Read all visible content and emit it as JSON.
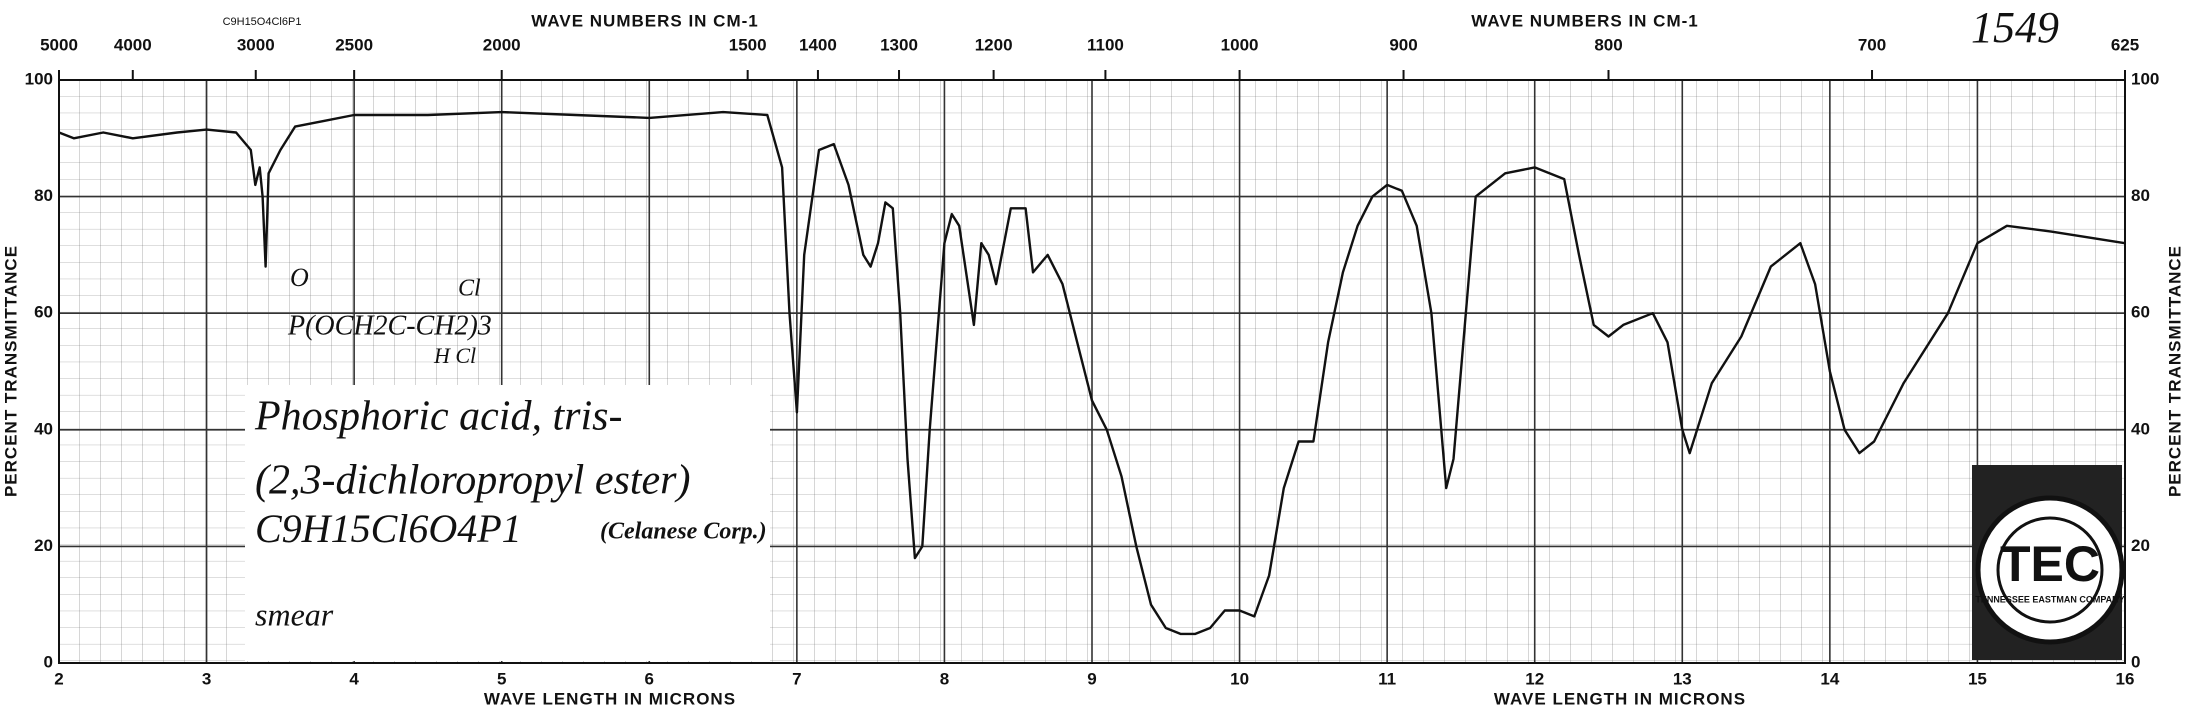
{
  "chart_data": {
    "type": "line",
    "catalog_number": "1549",
    "xlabel": "WAVE LENGTH IN MICRONS",
    "x2label": "WAVE NUMBERS IN CM-1",
    "ylabel": "PERCENT TRANSMITTANCE",
    "formula_top": "C9H15O4Cl6P1",
    "structure": [
      "O",
      "P(OCH2C-CH2)3",
      "Cl",
      "H Cl"
    ],
    "annotations": [
      "Phosphoric acid, tris-",
      "(2,3-dichloropropyl ester)",
      "C9H15Cl6O4P1",
      "(Celanese Corp.)",
      "smear"
    ],
    "logo": "TEC",
    "logo_ring": "TENNESSEE EASTMAN COMPANY",
    "color": "#111111",
    "grid": true,
    "xlim": [
      2,
      16
    ],
    "xticks": [
      2,
      3,
      4,
      5,
      6,
      7,
      8,
      9,
      10,
      11,
      12,
      13,
      14,
      15,
      16
    ],
    "x2lim": [
      5000,
      625
    ],
    "x2scale": "reciprocal",
    "x2ticks": [
      5000,
      4000,
      3000,
      2500,
      2000,
      1500,
      1400,
      1300,
      1200,
      1100,
      1000,
      900,
      800,
      700,
      625
    ],
    "ylim": [
      0,
      100
    ],
    "yticks": [
      0,
      20,
      40,
      60,
      80,
      100
    ],
    "x": [
      2.0,
      2.1,
      2.3,
      2.5,
      2.8,
      3.0,
      3.2,
      3.3,
      3.33,
      3.36,
      3.38,
      3.4,
      3.42,
      3.5,
      3.6,
      3.8,
      4.0,
      4.5,
      5.0,
      5.5,
      6.0,
      6.5,
      6.8,
      6.9,
      6.95,
      7.0,
      7.05,
      7.15,
      7.25,
      7.35,
      7.45,
      7.5,
      7.55,
      7.6,
      7.65,
      7.7,
      7.75,
      7.8,
      7.85,
      7.9,
      8.0,
      8.05,
      8.1,
      8.2,
      8.25,
      8.3,
      8.35,
      8.45,
      8.55,
      8.6,
      8.7,
      8.8,
      8.9,
      9.0,
      9.1,
      9.2,
      9.3,
      9.4,
      9.5,
      9.6,
      9.7,
      9.8,
      9.9,
      10.0,
      10.1,
      10.2,
      10.3,
      10.4,
      10.5,
      10.6,
      10.7,
      10.8,
      10.9,
      11.0,
      11.1,
      11.2,
      11.3,
      11.4,
      11.45,
      11.6,
      11.8,
      12.0,
      12.2,
      12.3,
      12.4,
      12.5,
      12.6,
      12.8,
      12.9,
      13.0,
      13.05,
      13.2,
      13.4,
      13.6,
      13.8,
      13.9,
      14.0,
      14.1,
      14.2,
      14.3,
      14.5,
      14.8,
      15.0,
      15.2,
      15.5,
      16.0
    ],
    "values": [
      91,
      90,
      91,
      90,
      91,
      91.5,
      91,
      88,
      82,
      85,
      80,
      68,
      84,
      88,
      92,
      93,
      94,
      94,
      94.5,
      94,
      93.5,
      94.5,
      94,
      85,
      60,
      43,
      70,
      88,
      89,
      82,
      70,
      68,
      72,
      79,
      78,
      60,
      35,
      18,
      20,
      40,
      72,
      77,
      75,
      58,
      72,
      70,
      65,
      78,
      78,
      67,
      70,
      65,
      55,
      45,
      40,
      32,
      20,
      10,
      6,
      5,
      5,
      6,
      9,
      9,
      8,
      15,
      30,
      38,
      38,
      55,
      67,
      75,
      80,
      82,
      81,
      75,
      60,
      30,
      35,
      80,
      84,
      85,
      83,
      70,
      58,
      56,
      58,
      60,
      55,
      40,
      36,
      48,
      56,
      68,
      72,
      65,
      50,
      40,
      36,
      38,
      48,
      60,
      72,
      75,
      74,
      72
    ]
  }
}
